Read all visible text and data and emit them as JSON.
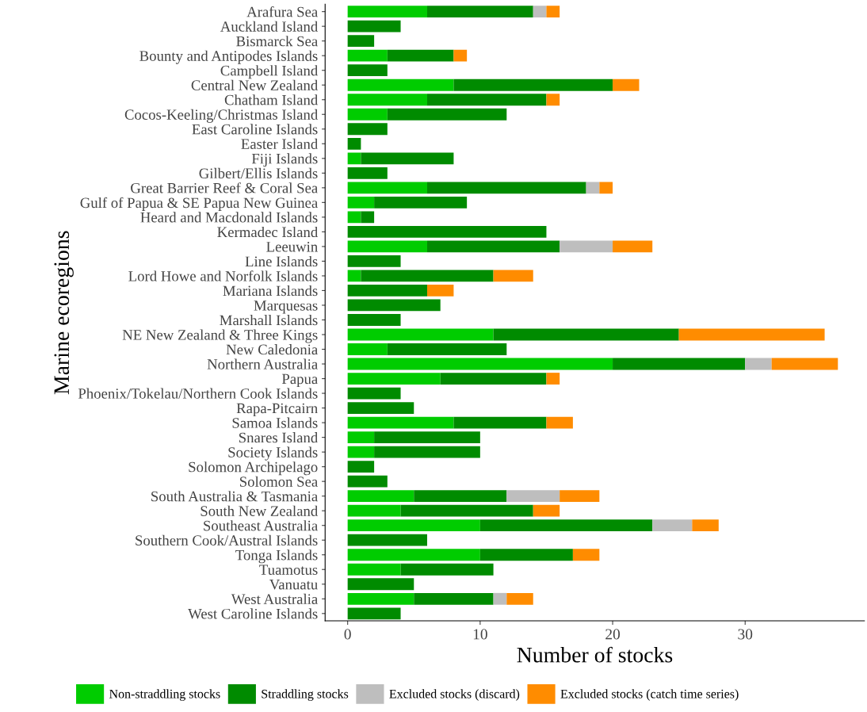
{
  "chart_data": {
    "type": "bar",
    "orientation": "horizontal",
    "stacked": true,
    "xlabel": "Number of stocks",
    "ylabel": "Marine ecoregions",
    "xlim": [
      -1.7,
      39
    ],
    "xticks": [
      0,
      10,
      20,
      30
    ],
    "grid": false,
    "legend": "bottom",
    "categories": [
      "Arafura Sea",
      "Auckland Island",
      "Bismarck Sea",
      "Bounty and Antipodes Islands",
      "Campbell Island",
      "Central New Zealand",
      "Chatham Island",
      "Cocos-Keeling/Christmas Island",
      "East Caroline Islands",
      "Easter Island",
      "Fiji Islands",
      "Gilbert/Ellis Islands",
      "Great Barrier Reef & Coral Sea",
      "Gulf of Papua & SE Papua New Guinea",
      "Heard and Macdonald Islands",
      "Kermadec Island",
      "Leeuwin",
      "Line Islands",
      "Lord Howe and Norfolk Islands",
      "Mariana Islands",
      "Marquesas",
      "Marshall Islands",
      "NE New Zealand & Three Kings",
      "New Caledonia",
      "Northern Australia",
      "Papua",
      "Phoenix/Tokelau/Northern Cook Islands",
      "Rapa-Pitcairn",
      "Samoa Islands",
      "Snares Island",
      "Society Islands",
      "Solomon Archipelago",
      "Solomon Sea",
      "South Australia & Tasmania",
      "South New Zealand",
      "Southeast Australia",
      "Southern Cook/Austral Islands",
      "Tonga Islands",
      "Tuamotus",
      "Vanuatu",
      "West Australia",
      "West Caroline Islands"
    ],
    "series": [
      {
        "name": "Non-straddling stocks",
        "color": "#00cc00",
        "values": [
          6,
          0,
          0,
          3,
          0,
          8,
          6,
          3,
          0,
          0,
          1,
          0,
          6,
          2,
          1,
          0,
          6,
          0,
          1,
          0,
          0,
          0,
          11,
          3,
          20,
          7,
          0,
          0,
          8,
          2,
          2,
          0,
          0,
          5,
          4,
          10,
          0,
          10,
          4,
          0,
          5,
          0
        ]
      },
      {
        "name": "Straddling stocks",
        "color": "#008b00",
        "values": [
          8,
          4,
          2,
          5,
          3,
          12,
          9,
          9,
          3,
          1,
          7,
          3,
          12,
          7,
          1,
          15,
          10,
          4,
          10,
          6,
          7,
          4,
          14,
          9,
          10,
          8,
          4,
          5,
          7,
          8,
          8,
          2,
          3,
          7,
          10,
          13,
          6,
          7,
          7,
          5,
          6,
          4
        ]
      },
      {
        "name": "Excluded stocks (discard)",
        "color": "#bebebe",
        "values": [
          1,
          0,
          0,
          0,
          0,
          0,
          0,
          0,
          0,
          0,
          0,
          0,
          1,
          0,
          0,
          0,
          4,
          0,
          0,
          0,
          0,
          0,
          0,
          0,
          2,
          0,
          0,
          0,
          0,
          0,
          0,
          0,
          0,
          4,
          0,
          3,
          0,
          0,
          0,
          0,
          1,
          0
        ]
      },
      {
        "name": "Excluded stocks (catch time series)",
        "color": "#ff8c00",
        "values": [
          1,
          0,
          0,
          1,
          0,
          2,
          1,
          0,
          0,
          0,
          0,
          0,
          1,
          0,
          0,
          0,
          3,
          0,
          3,
          2,
          0,
          0,
          11,
          0,
          5,
          1,
          0,
          0,
          2,
          0,
          0,
          0,
          0,
          3,
          2,
          2,
          0,
          2,
          0,
          0,
          2,
          0
        ]
      }
    ]
  }
}
